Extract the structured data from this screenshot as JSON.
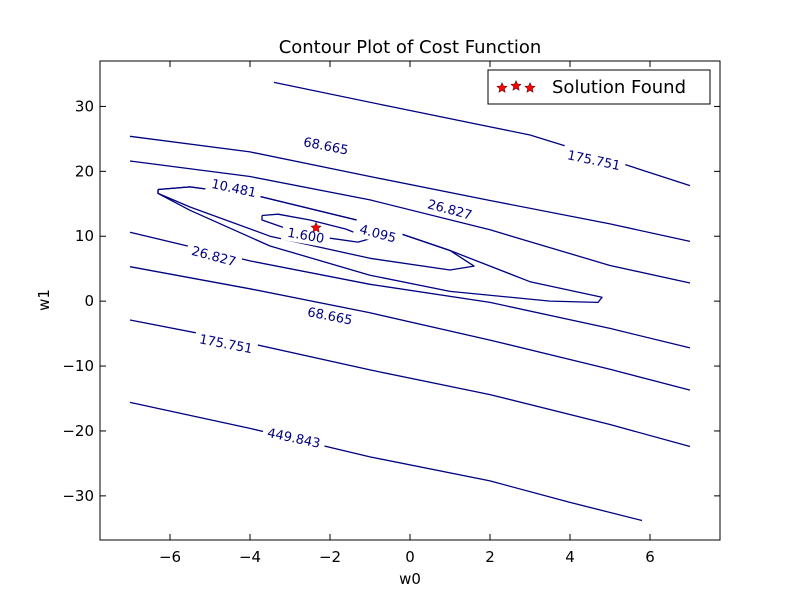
{
  "chart_data": {
    "type": "contour",
    "title": "Contour Plot of Cost Function",
    "xlabel": "w0",
    "ylabel": "w1",
    "xlim": [
      -7.75,
      7.75
    ],
    "ylim": [
      -36.8,
      37.0
    ],
    "xticks": [
      -6,
      -4,
      -2,
      0,
      2,
      4,
      6
    ],
    "yticks": [
      -30,
      -20,
      -10,
      0,
      10,
      20,
      30
    ],
    "xtick_labels": [
      "−6",
      "−4",
      "−2",
      "0",
      "2",
      "4",
      "6"
    ],
    "ytick_labels": [
      "−30",
      "−20",
      "−10",
      "0",
      "10",
      "20",
      "30"
    ],
    "grid": false,
    "legend": {
      "position": "top-right",
      "entries": [
        {
          "label": "Solution Found",
          "marker": "star",
          "color": "#ff0000"
        }
      ]
    },
    "line_color": "#000080",
    "solution_point": {
      "w0": -2.35,
      "w1": 11.3
    },
    "contour_levels": [
      {
        "level": "1.600",
        "lines": [
          {
            "points": [
              [
                -3.7,
                13.2
              ],
              [
                -3.3,
                13.4
              ],
              [
                -2.5,
                12.5
              ],
              [
                -1.6,
                11.1
              ],
              [
                -1.0,
                9.6
              ],
              [
                -1.3,
                9.1
              ],
              [
                -2.0,
                9.7
              ],
              [
                -3.0,
                11.0
              ],
              [
                -3.7,
                12.5
              ],
              [
                -3.7,
                13.2
              ]
            ]
          }
        ],
        "labels": [
          {
            "text": "1.600",
            "w0": -2.6,
            "w1": 10.2,
            "angle": 10
          }
        ]
      },
      {
        "level": "4.095",
        "lines": [
          {
            "points": [
              [
                -6.3,
                17.2
              ],
              [
                -5.5,
                17.6
              ],
              [
                -3.8,
                16.2
              ],
              [
                -1.0,
                12.0
              ],
              [
                1.0,
                7.8
              ],
              [
                1.6,
                5.4
              ],
              [
                1.0,
                4.8
              ],
              [
                -1.0,
                6.6
              ],
              [
                -3.5,
                10.0
              ],
              [
                -5.5,
                14.5
              ],
              [
                -6.3,
                16.6
              ],
              [
                -6.3,
                17.2
              ]
            ]
          }
        ],
        "labels": [
          {
            "text": "4.095",
            "w0": -0.8,
            "w1": 10.5,
            "angle": 15
          }
        ]
      },
      {
        "level": "10.481",
        "lines": [
          {
            "points": [
              [
                -6.3,
                17.2
              ],
              [
                -5.5,
                17.6
              ],
              [
                -3.8,
                16.2
              ],
              [
                -1.0,
                12.0
              ],
              [
                1.0,
                7.8
              ],
              [
                3.0,
                3.0
              ],
              [
                4.8,
                0.6
              ],
              [
                4.7,
                -0.2
              ],
              [
                3.5,
                0.0
              ],
              [
                1.0,
                1.5
              ],
              [
                -1.0,
                4.0
              ],
              [
                -3.5,
                8.5
              ],
              [
                -5.5,
                14.0
              ],
              [
                -6.3,
                16.6
              ],
              [
                -6.3,
                17.2
              ]
            ]
          }
        ],
        "labels": [
          {
            "text": "10.481",
            "w0": -4.4,
            "w1": 17.5,
            "angle": 12
          }
        ]
      },
      {
        "level": "26.827",
        "lines": [
          {
            "points": [
              [
                -7.0,
                21.6
              ],
              [
                -4.0,
                19.2
              ],
              [
                -1.0,
                15.6
              ],
              [
                2.0,
                11.0
              ],
              [
                5.0,
                5.5
              ],
              [
                7.0,
                2.8
              ]
            ]
          },
          {
            "points": [
              [
                -7.0,
                10.6
              ],
              [
                -4.0,
                6.2
              ],
              [
                -1.0,
                2.6
              ],
              [
                2.0,
                -0.2
              ],
              [
                5.0,
                -4.2
              ],
              [
                7.0,
                -7.2
              ]
            ]
          }
        ],
        "labels": [
          {
            "text": "26.827",
            "w0": 1.0,
            "w1": 14.2,
            "angle": 15
          },
          {
            "text": "26.827",
            "w0": -4.9,
            "w1": 7.0,
            "angle": 15
          }
        ]
      },
      {
        "level": "68.665",
        "lines": [
          {
            "points": [
              [
                -7.0,
                25.4
              ],
              [
                -4.0,
                23.0
              ],
              [
                -1.0,
                19.2
              ],
              [
                2.0,
                15.5
              ],
              [
                5.0,
                11.9
              ],
              [
                7.0,
                9.2
              ]
            ]
          },
          {
            "points": [
              [
                -7.0,
                5.3
              ],
              [
                -4.0,
                1.9
              ],
              [
                -1.0,
                -1.8
              ],
              [
                2.0,
                -6.0
              ],
              [
                5.0,
                -10.5
              ],
              [
                7.0,
                -13.7
              ]
            ]
          }
        ],
        "labels": [
          {
            "text": "68.665",
            "w0": -2.1,
            "w1": 24.0,
            "angle": 11
          },
          {
            "text": "68.665",
            "w0": -2.0,
            "w1": -2.2,
            "angle": 11
          }
        ]
      },
      {
        "level": "175.751",
        "lines": [
          {
            "points": [
              [
                -3.4,
                33.7
              ],
              [
                -0.5,
                30.0
              ],
              [
                3.0,
                25.6
              ],
              [
                5.0,
                21.8
              ],
              [
                7.0,
                17.8
              ]
            ]
          },
          {
            "points": [
              [
                -7.0,
                -2.9
              ],
              [
                -4.0,
                -6.5
              ],
              [
                -1.0,
                -10.6
              ],
              [
                2.0,
                -14.4
              ],
              [
                5.0,
                -19.0
              ],
              [
                7.0,
                -22.4
              ]
            ]
          }
        ],
        "labels": [
          {
            "text": "175.751",
            "w0": 4.6,
            "w1": 21.8,
            "angle": 12
          },
          {
            "text": "175.751",
            "w0": -4.6,
            "w1": -6.5,
            "angle": 11
          }
        ]
      },
      {
        "level": "449.843",
        "lines": [
          {
            "points": [
              [
                -7.0,
                -15.6
              ],
              [
                -4.0,
                -19.6
              ],
              [
                -1.0,
                -24.0
              ],
              [
                2.0,
                -27.7
              ],
              [
                4.0,
                -31.0
              ],
              [
                5.8,
                -33.8
              ]
            ]
          }
        ],
        "labels": [
          {
            "text": "449.843",
            "w0": -2.9,
            "w1": -21.0,
            "angle": 12
          }
        ]
      }
    ]
  }
}
